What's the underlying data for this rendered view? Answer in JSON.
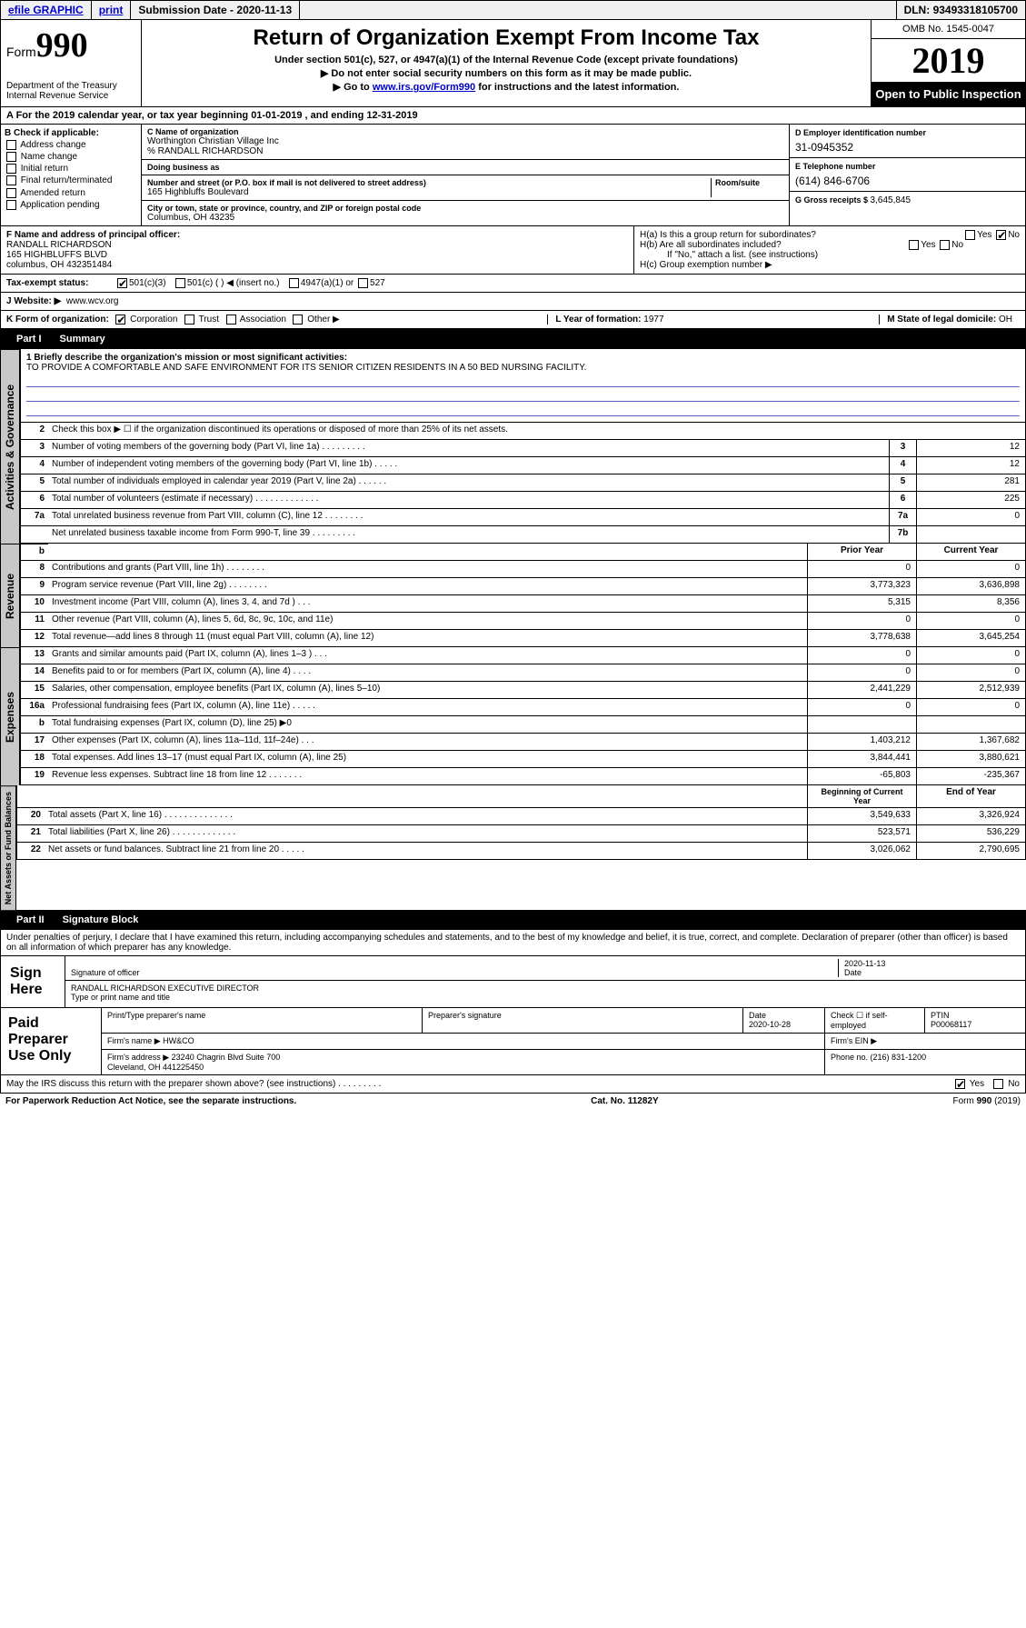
{
  "topbar": {
    "efile": "efile GRAPHIC",
    "print": "print",
    "sub_label": "Submission Date - ",
    "sub_date": "2020-11-13",
    "dln_label": "DLN: ",
    "dln": "93493318105700"
  },
  "header": {
    "form_word": "Form",
    "form_num": "990",
    "dept": "Department of the Treasury\nInternal Revenue Service",
    "title": "Return of Organization Exempt From Income Tax",
    "sub1": "Under section 501(c), 527, or 4947(a)(1) of the Internal Revenue Code (except private foundations)",
    "sub2": "Do not enter social security numbers on this form as it may be made public.",
    "sub3_a": "Go to ",
    "sub3_link": "www.irs.gov/Form990",
    "sub3_b": " for instructions and the latest information.",
    "omb": "OMB No. 1545-0047",
    "year": "2019",
    "open": "Open to Public Inspection"
  },
  "row_a": "A For the 2019 calendar year, or tax year beginning 01-01-2019    , and ending 12-31-2019",
  "col_b": {
    "label": "B Check if applicable:",
    "addr": "Address change",
    "name": "Name change",
    "init": "Initial return",
    "final": "Final return/terminated",
    "amend": "Amended return",
    "app": "Application pending"
  },
  "col_c": {
    "name_lab": "C Name of organization",
    "name": "Worthington Christian Village Inc",
    "care": "% RANDALL RICHARDSON",
    "dba_lab": "Doing business as",
    "street_lab": "Number and street (or P.O. box if mail is not delivered to street address)",
    "room_lab": "Room/suite",
    "street": "165 Highbluffs Boulevard",
    "city_lab": "City or town, state or province, country, and ZIP or foreign postal code",
    "city": "Columbus, OH  43235"
  },
  "col_d": {
    "ein_lab": "D Employer identification number",
    "ein": "31-0945352",
    "tel_lab": "E Telephone number",
    "tel": "(614) 846-6706",
    "gross_lab": "G Gross receipts $ ",
    "gross": "3,645,845"
  },
  "section_f": {
    "lab": "F  Name and address of principal officer:",
    "name": "RANDALL RICHARDSON",
    "addr1": "165 HIGHBLUFFS BLVD",
    "addr2": "columbus, OH  432351484"
  },
  "section_h": {
    "ha": "H(a)  Is this a group return for subordinates?",
    "hb": "H(b)  Are all subordinates included?",
    "hb_note": "If \"No,\" attach a list. (see instructions)",
    "hc": "H(c)  Group exemption number ▶",
    "yes": "Yes",
    "no": "No"
  },
  "row_i": {
    "lab": "Tax-exempt status:",
    "c3": "501(c)(3)",
    "c": "501(c) (   ) ◀ (insert no.)",
    "a1": "4947(a)(1) or",
    "s527": "527"
  },
  "row_j": {
    "lab": "J   Website: ▶",
    "val": "www.wcv.org"
  },
  "row_k": {
    "lab": "K Form of organization:",
    "corp": "Corporation",
    "trust": "Trust",
    "assoc": "Association",
    "other": "Other ▶",
    "yof_lab": "L Year of formation: ",
    "yof": "1977",
    "dom_lab": "M State of legal domicile: ",
    "dom": "OH"
  },
  "part1": {
    "num": "Part I",
    "title": "Summary"
  },
  "mission": {
    "q1": "1  Briefly describe the organization's mission or most significant activities:",
    "text": "TO PROVIDE A COMFORTABLE AND SAFE ENVIRONMENT FOR ITS SENIOR CITIZEN RESIDENTS IN A 50 BED NURSING FACILITY."
  },
  "gov_rows": [
    {
      "n": "2",
      "d": "Check this box ▶ ☐  if the organization discontinued its operations or disposed of more than 25% of its net assets."
    },
    {
      "n": "3",
      "d": "Number of voting members of the governing body (Part VI, line 1a)  .    .    .    .    .    .    .    .    .",
      "b": "3",
      "v": "12"
    },
    {
      "n": "4",
      "d": "Number of independent voting members of the governing body (Part VI, line 1b)   .    .    .    .    .",
      "b": "4",
      "v": "12"
    },
    {
      "n": "5",
      "d": "Total number of individuals employed in calendar year 2019 (Part V, line 2a)   .    .    .    .    .    .",
      "b": "5",
      "v": "281"
    },
    {
      "n": "6",
      "d": "Total number of volunteers (estimate if necessary)   .    .    .    .    .    .    .    .    .    .    .    .    .",
      "b": "6",
      "v": "225"
    },
    {
      "n": "7a",
      "d": "Total unrelated business revenue from Part VIII, column (C), line 12   .    .    .    .    .    .    .    .",
      "b": "7a",
      "v": "0"
    },
    {
      "n": "",
      "d": "Net unrelated business taxable income from Form 990-T, line 39   .    .    .    .    .    .    .    .    .",
      "b": "7b",
      "v": ""
    }
  ],
  "vert_labels": {
    "gov": "Activities & Governance",
    "rev": "Revenue",
    "exp": "Expenses",
    "net": "Net Assets or Fund Balances"
  },
  "two_col_hdr": {
    "prior": "Prior Year",
    "current": "Current Year"
  },
  "rev_rows": [
    {
      "n": "8",
      "d": "Contributions and grants (Part VIII, line 1h)   .    .    .    .    .    .    .    .",
      "p": "0",
      "c": "0"
    },
    {
      "n": "9",
      "d": "Program service revenue (Part VIII, line 2g)   .    .    .    .    .    .    .    .",
      "p": "3,773,323",
      "c": "3,636,898"
    },
    {
      "n": "10",
      "d": "Investment income (Part VIII, column (A), lines 3, 4, and 7d )   .    .    .",
      "p": "5,315",
      "c": "8,356"
    },
    {
      "n": "11",
      "d": "Other revenue (Part VIII, column (A), lines 5, 6d, 8c, 9c, 10c, and 11e)",
      "p": "0",
      "c": "0"
    },
    {
      "n": "12",
      "d": "Total revenue—add lines 8 through 11 (must equal Part VIII, column (A), line 12)",
      "p": "3,778,638",
      "c": "3,645,254"
    }
  ],
  "exp_rows": [
    {
      "n": "13",
      "d": "Grants and similar amounts paid (Part IX, column (A), lines 1–3 )   .    .    .",
      "p": "0",
      "c": "0"
    },
    {
      "n": "14",
      "d": "Benefits paid to or for members (Part IX, column (A), line 4)   .    .    .    .",
      "p": "0",
      "c": "0"
    },
    {
      "n": "15",
      "d": "Salaries, other compensation, employee benefits (Part IX, column (A), lines 5–10)",
      "p": "2,441,229",
      "c": "2,512,939"
    },
    {
      "n": "16a",
      "d": "Professional fundraising fees (Part IX, column (A), line 11e)   .    .    .    .    .",
      "p": "0",
      "c": "0"
    },
    {
      "n": "b",
      "d": "Total fundraising expenses (Part IX, column (D), line 25) ▶0",
      "p": "",
      "c": ""
    },
    {
      "n": "17",
      "d": "Other expenses (Part IX, column (A), lines 11a–11d, 11f–24e)   .    .    .",
      "p": "1,403,212",
      "c": "1,367,682"
    },
    {
      "n": "18",
      "d": "Total expenses. Add lines 13–17 (must equal Part IX, column (A), line 25)",
      "p": "3,844,441",
      "c": "3,880,621"
    },
    {
      "n": "19",
      "d": "Revenue less expenses. Subtract line 18 from line 12   .    .    .    .    .    .    .",
      "p": "-65,803",
      "c": "-235,367"
    }
  ],
  "net_hdr": {
    "beg": "Beginning of Current Year",
    "end": "End of Year"
  },
  "net_rows": [
    {
      "n": "20",
      "d": "Total assets (Part X, line 16)   .    .    .    .    .    .    .    .    .    .    .    .    .    .",
      "p": "3,549,633",
      "c": "3,326,924"
    },
    {
      "n": "21",
      "d": "Total liabilities (Part X, line 26)   .    .    .    .    .    .    .    .    .    .    .    .    .",
      "p": "523,571",
      "c": "536,229"
    },
    {
      "n": "22",
      "d": "Net assets or fund balances. Subtract line 21 from line 20   .    .    .    .    .",
      "p": "3,026,062",
      "c": "2,790,695"
    }
  ],
  "part2": {
    "num": "Part II",
    "title": "Signature Block"
  },
  "penalties": "Under penalties of perjury, I declare that I have examined this return, including accompanying schedules and statements, and to the best of my knowledge and belief, it is true, correct, and complete. Declaration of preparer (other than officer) is based on all information of which preparer has any knowledge.",
  "sign": {
    "here": "Sign Here",
    "sig_lab": "Signature of officer",
    "date": "2020-11-13",
    "date_lab": "Date",
    "name": "RANDALL RICHARDSON  EXECUTIVE DIRECTOR",
    "name_lab": "Type or print name and title"
  },
  "paid": {
    "label": "Paid Preparer Use Only",
    "prep_name_lab": "Print/Type preparer's name",
    "prep_sig_lab": "Preparer's signature",
    "date_lab": "Date",
    "date": "2020-10-28",
    "check_lab": "Check ☐ if self-employed",
    "ptin_lab": "PTIN",
    "ptin": "P00068117",
    "firm_name_lab": "Firm's name    ▶",
    "firm_name": "HW&CO",
    "firm_ein_lab": "Firm's EIN ▶",
    "firm_addr_lab": "Firm's address ▶",
    "firm_addr": "23240 Chagrin Blvd Suite 700\nCleveland, OH  441225450",
    "phone_lab": "Phone no. ",
    "phone": "(216) 831-1200"
  },
  "discuss": {
    "q": "May the IRS discuss this return with the preparer shown above? (see instructions)   .    .    .    .    .    .    .    .    .",
    "yes": "Yes",
    "no": "No"
  },
  "footer": {
    "pra": "For Paperwork Reduction Act Notice, see the separate instructions.",
    "cat": "Cat. No. 11282Y",
    "form": "Form 990 (2019)"
  }
}
